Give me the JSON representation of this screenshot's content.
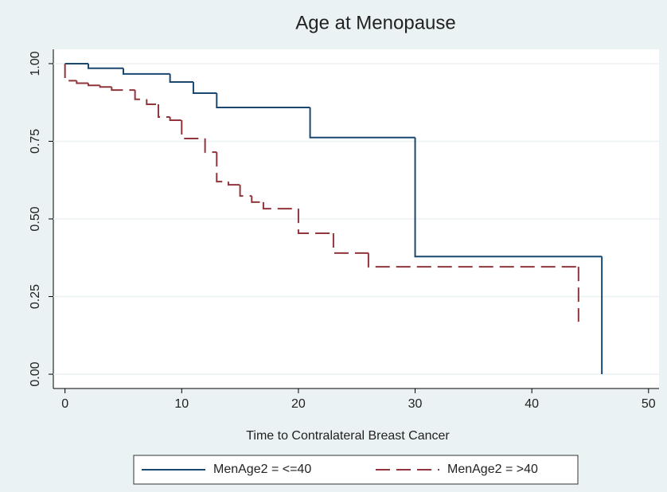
{
  "chart_data": {
    "type": "step",
    "title": "Age at Menopause",
    "x_label": "Time to Contralateral Breast Cancer",
    "xlim": [
      -1,
      50.9
    ],
    "xticks": [
      0,
      10,
      20,
      30,
      40,
      50
    ],
    "ylim": [
      -0.046,
      1.046
    ],
    "yticks": [
      {
        "value": 0,
        "label": "0.00"
      },
      0.25,
      {
        "value": 0.5,
        "label": "0.50"
      },
      0.75,
      {
        "value": 1,
        "label": "1.00"
      }
    ],
    "grid": true,
    "legend": "bottom",
    "series": [
      {
        "name": "MenAge2 = <=40",
        "color": "#1a476f",
        "dashed": false,
        "x": [
          0,
          2,
          5,
          9,
          11,
          13,
          21,
          30,
          46
        ],
        "values": [
          1,
          0.985,
          0.967,
          0.941,
          0.905,
          0.859,
          0.762,
          0.379,
          0
        ]
      },
      {
        "name": "MenAge2 = >40",
        "color": "#90353b",
        "dashed": true,
        "x": [
          0,
          0,
          1,
          2,
          3,
          4,
          6,
          7,
          8,
          9,
          10,
          12,
          13,
          14,
          15,
          16,
          17,
          20,
          23,
          26,
          44
        ],
        "values": [
          1,
          0.945,
          0.937,
          0.93,
          0.925,
          0.915,
          0.885,
          0.869,
          0.828,
          0.818,
          0.759,
          0.715,
          0.62,
          0.61,
          0.574,
          0.554,
          0.533,
          0.454,
          0.39,
          0.346,
          0.169
        ]
      }
    ]
  }
}
